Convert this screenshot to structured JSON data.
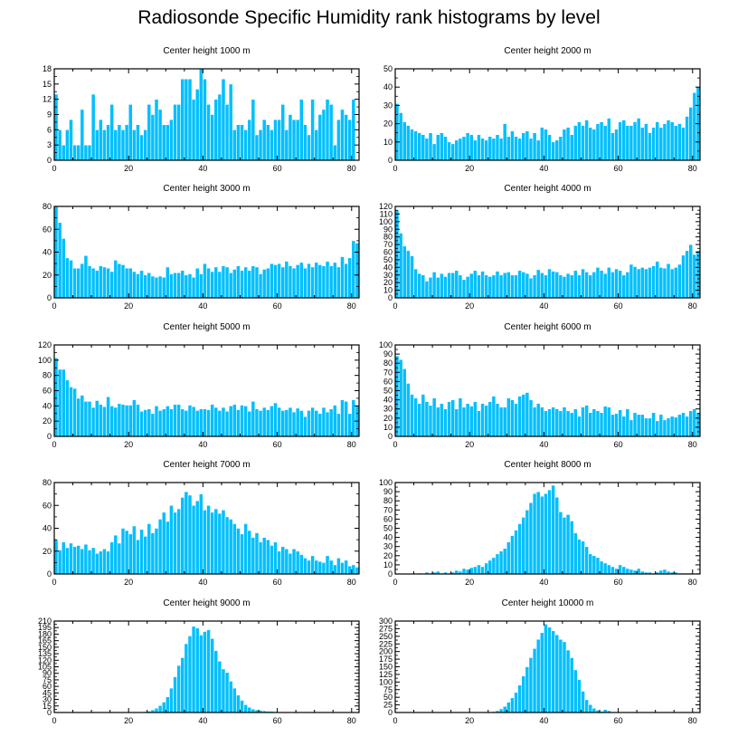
{
  "title": "Radiosonde Specific Humidity rank histograms by level",
  "colors": {
    "bar": "#00BFFF",
    "bar_edge": "#ffffff",
    "axis": "#000000"
  },
  "chart_data": [
    {
      "type": "bar",
      "title": "Center height 1000 m",
      "xlabel": "",
      "ylabel": "",
      "xlim": [
        0,
        82
      ],
      "ylim": [
        0,
        18
      ],
      "xticks": [
        0,
        20,
        40,
        60,
        80
      ],
      "yticks": [
        0,
        3,
        6,
        9,
        12,
        15,
        18
      ],
      "values": [
        13,
        6,
        3,
        6,
        8,
        3,
        3,
        10,
        3,
        3,
        13,
        6,
        8,
        6,
        7,
        11,
        6,
        7,
        6,
        7,
        11,
        6,
        7,
        5,
        6,
        11,
        9,
        12,
        10,
        7,
        7,
        8,
        11,
        11,
        16,
        16,
        16,
        12,
        14,
        18,
        16,
        11,
        9,
        12,
        13,
        16,
        11,
        15,
        6,
        7,
        7,
        6,
        8,
        12,
        5,
        6,
        8,
        7,
        6,
        8,
        8,
        11,
        6,
        9,
        8,
        8,
        12,
        7,
        5,
        12,
        6,
        9,
        10,
        12,
        11,
        3,
        8,
        10,
        9,
        8,
        12
      ]
    },
    {
      "type": "bar",
      "title": "Center height 2000 m",
      "xlabel": "",
      "ylabel": "",
      "xlim": [
        0,
        82
      ],
      "ylim": [
        0,
        50
      ],
      "xticks": [
        0,
        20,
        40,
        60,
        80
      ],
      "yticks": [
        0,
        10,
        20,
        30,
        40,
        50
      ],
      "values": [
        31,
        26,
        21,
        19,
        17,
        16,
        15,
        14,
        12,
        15,
        9,
        14,
        15,
        13,
        10,
        9,
        11,
        12,
        13,
        15,
        14,
        11,
        14,
        12,
        11,
        13,
        12,
        14,
        12,
        20,
        13,
        16,
        13,
        12,
        15,
        16,
        12,
        15,
        11,
        18,
        17,
        14,
        10,
        11,
        13,
        17,
        18,
        14,
        19,
        21,
        19,
        22,
        18,
        17,
        20,
        21,
        19,
        23,
        15,
        17,
        21,
        22,
        19,
        19,
        21,
        23,
        18,
        20,
        15,
        18,
        21,
        18,
        20,
        22,
        21,
        19,
        20,
        18,
        24,
        29,
        37,
        40
      ]
    },
    {
      "type": "bar",
      "title": "Center height 3000 m",
      "xlabel": "",
      "ylabel": "",
      "xlim": [
        0,
        82
      ],
      "ylim": [
        0,
        80
      ],
      "xticks": [
        0,
        20,
        40,
        60,
        80
      ],
      "yticks": [
        0,
        20,
        40,
        60,
        80
      ],
      "values": [
        80,
        66,
        52,
        35,
        33,
        26,
        26,
        30,
        37,
        28,
        26,
        24,
        28,
        27,
        26,
        23,
        33,
        30,
        29,
        26,
        26,
        23,
        21,
        24,
        20,
        22,
        19,
        18,
        19,
        18,
        27,
        21,
        22,
        22,
        24,
        20,
        21,
        18,
        26,
        21,
        30,
        26,
        23,
        27,
        23,
        28,
        27,
        22,
        25,
        28,
        24,
        27,
        24,
        28,
        27,
        21,
        25,
        26,
        30,
        29,
        30,
        27,
        32,
        28,
        26,
        29,
        31,
        26,
        30,
        27,
        31,
        29,
        28,
        32,
        28,
        31,
        27,
        36,
        30,
        35,
        50,
        48
      ]
    },
    {
      "type": "bar",
      "title": "Center height 4000 m",
      "xlabel": "",
      "ylabel": "",
      "xlim": [
        0,
        82
      ],
      "ylim": [
        0,
        120
      ],
      "xticks": [
        0,
        20,
        40,
        60,
        80
      ],
      "yticks": [
        0,
        10,
        20,
        30,
        40,
        50,
        60,
        70,
        80,
        90,
        100,
        110,
        120
      ],
      "values": [
        115,
        85,
        68,
        62,
        55,
        38,
        32,
        30,
        22,
        27,
        34,
        27,
        32,
        28,
        33,
        33,
        36,
        30,
        24,
        28,
        32,
        36,
        30,
        35,
        30,
        28,
        30,
        35,
        30,
        33,
        34,
        30,
        30,
        36,
        34,
        32,
        26,
        30,
        37,
        33,
        30,
        38,
        35,
        34,
        30,
        28,
        32,
        30,
        36,
        30,
        38,
        34,
        30,
        34,
        40,
        36,
        32,
        40,
        34,
        38,
        36,
        30,
        34,
        44,
        41,
        38,
        40,
        38,
        40,
        42,
        48,
        40,
        39,
        45,
        38,
        40,
        44,
        56,
        62,
        70,
        57,
        62
      ]
    },
    {
      "type": "bar",
      "title": "Center height 5000 m",
      "xlabel": "",
      "ylabel": "",
      "xlim": [
        0,
        82
      ],
      "ylim": [
        0,
        120
      ],
      "xticks": [
        0,
        20,
        40,
        60,
        80
      ],
      "yticks": [
        0,
        20,
        40,
        60,
        80,
        100,
        120
      ],
      "values": [
        103,
        88,
        88,
        74,
        65,
        63,
        50,
        54,
        46,
        46,
        38,
        47,
        42,
        39,
        52,
        40,
        38,
        43,
        42,
        41,
        41,
        48,
        42,
        33,
        35,
        36,
        30,
        40,
        34,
        36,
        40,
        36,
        42,
        42,
        36,
        34,
        41,
        39,
        34,
        36,
        36,
        35,
        42,
        38,
        34,
        38,
        33,
        40,
        42,
        35,
        41,
        40,
        33,
        46,
        36,
        34,
        38,
        35,
        40,
        44,
        38,
        34,
        35,
        38,
        32,
        37,
        34,
        26,
        34,
        38,
        34,
        30,
        38,
        32,
        36,
        41,
        30,
        48,
        46,
        30,
        48,
        40
      ]
    },
    {
      "type": "bar",
      "title": "Center height 6000 m",
      "xlabel": "",
      "ylabel": "",
      "xlim": [
        0,
        82
      ],
      "ylim": [
        0,
        100
      ],
      "xticks": [
        0,
        20,
        40,
        60,
        80
      ],
      "yticks": [
        0,
        10,
        20,
        30,
        40,
        50,
        60,
        70,
        80,
        90,
        100
      ],
      "values": [
        88,
        84,
        74,
        58,
        46,
        42,
        36,
        46,
        38,
        34,
        42,
        32,
        36,
        30,
        38,
        40,
        30,
        42,
        32,
        36,
        33,
        38,
        28,
        36,
        34,
        38,
        44,
        36,
        32,
        32,
        42,
        40,
        36,
        44,
        46,
        48,
        40,
        32,
        36,
        32,
        28,
        30,
        32,
        30,
        28,
        32,
        28,
        26,
        30,
        22,
        32,
        34,
        26,
        30,
        28,
        26,
        33,
        32,
        24,
        25,
        29,
        22,
        30,
        18,
        26,
        24,
        24,
        20,
        20,
        26,
        17,
        24,
        18,
        20,
        22,
        21,
        24,
        26,
        22,
        28,
        30,
        26
      ]
    },
    {
      "type": "bar",
      "title": "Center height 7000 m",
      "xlabel": "",
      "ylabel": "",
      "xlim": [
        0,
        82
      ],
      "ylim": [
        0,
        80
      ],
      "xticks": [
        0,
        20,
        40,
        60,
        80
      ],
      "yticks": [
        0,
        20,
        40,
        60,
        80
      ],
      "values": [
        30,
        21,
        28,
        23,
        27,
        24,
        25,
        22,
        26,
        21,
        23,
        18,
        20,
        22,
        20,
        28,
        34,
        27,
        40,
        38,
        35,
        42,
        30,
        39,
        33,
        44,
        36,
        40,
        48,
        54,
        46,
        60,
        54,
        57,
        67,
        72,
        69,
        60,
        64,
        70,
        56,
        60,
        54,
        57,
        53,
        56,
        50,
        48,
        44,
        40,
        35,
        44,
        38,
        32,
        36,
        28,
        32,
        30,
        25,
        28,
        20,
        24,
        22,
        18,
        22,
        20,
        17,
        14,
        12,
        16,
        12,
        11,
        10,
        16,
        12,
        8,
        14,
        10,
        12,
        7,
        8,
        6
      ]
    },
    {
      "type": "bar",
      "title": "Center height 8000 m",
      "xlabel": "",
      "ylabel": "",
      "xlim": [
        0,
        82
      ],
      "ylim": [
        0,
        100
      ],
      "xticks": [
        0,
        20,
        40,
        60,
        80
      ],
      "yticks": [
        0,
        10,
        20,
        30,
        40,
        50,
        60,
        70,
        80,
        90,
        100
      ],
      "values": [
        0,
        0,
        0,
        0,
        0,
        0,
        1,
        0,
        2,
        1,
        2,
        3,
        1,
        2,
        1,
        2,
        4,
        3,
        6,
        5,
        7,
        8,
        10,
        8,
        12,
        15,
        18,
        22,
        25,
        28,
        35,
        42,
        48,
        55,
        62,
        70,
        78,
        88,
        90,
        85,
        88,
        92,
        97,
        84,
        68,
        62,
        65,
        58,
        45,
        38,
        36,
        30,
        22,
        20,
        18,
        14,
        12,
        10,
        8,
        6,
        10,
        8,
        6,
        5,
        4,
        6,
        3,
        2,
        2,
        1,
        2,
        4,
        5,
        3,
        2,
        2,
        1,
        1,
        1,
        1,
        0,
        1
      ]
    },
    {
      "type": "bar",
      "title": "Center height 9000 m",
      "xlabel": "",
      "ylabel": "",
      "xlim": [
        0,
        82
      ],
      "ylim": [
        0,
        210
      ],
      "xticks": [
        0,
        20,
        40,
        60,
        80
      ],
      "yticks": [
        0,
        15,
        30,
        45,
        60,
        75,
        90,
        105,
        120,
        135,
        150,
        165,
        180,
        195,
        210
      ],
      "values": [
        0,
        0,
        0,
        0,
        0,
        0,
        0,
        0,
        0,
        0,
        0,
        0,
        0,
        0,
        0,
        0,
        0,
        0,
        0,
        0,
        0,
        0,
        0,
        1,
        2,
        3,
        6,
        10,
        16,
        24,
        36,
        56,
        82,
        108,
        126,
        158,
        176,
        198,
        194,
        178,
        186,
        190,
        170,
        142,
        118,
        100,
        92,
        72,
        56,
        40,
        28,
        18,
        12,
        8,
        6,
        5,
        4,
        3,
        3,
        2,
        1,
        1,
        0,
        0,
        0,
        0,
        0,
        0,
        0,
        0,
        0,
        0,
        0,
        0,
        0,
        0,
        0,
        0,
        0,
        0,
        0,
        0
      ]
    },
    {
      "type": "bar",
      "title": "Center height 10000 m",
      "xlabel": "",
      "ylabel": "",
      "xlim": [
        0,
        82
      ],
      "ylim": [
        0,
        300
      ],
      "xticks": [
        0,
        20,
        40,
        60,
        80
      ],
      "yticks": [
        0,
        25,
        50,
        75,
        100,
        125,
        150,
        175,
        200,
        225,
        250,
        275,
        300
      ],
      "values": [
        0,
        0,
        0,
        0,
        0,
        0,
        0,
        0,
        0,
        0,
        0,
        0,
        0,
        0,
        0,
        0,
        0,
        0,
        0,
        0,
        0,
        0,
        0,
        0,
        1,
        2,
        3,
        6,
        12,
        20,
        34,
        48,
        66,
        90,
        120,
        150,
        180,
        210,
        240,
        262,
        290,
        280,
        268,
        255,
        240,
        232,
        205,
        180,
        140,
        108,
        70,
        42,
        26,
        14,
        8,
        4,
        10,
        6,
        2,
        2,
        1,
        1,
        0,
        0,
        0,
        0,
        0,
        0,
        0,
        0,
        0,
        0,
        0,
        0,
        0,
        0,
        0,
        0,
        0,
        0,
        0,
        0
      ]
    }
  ]
}
